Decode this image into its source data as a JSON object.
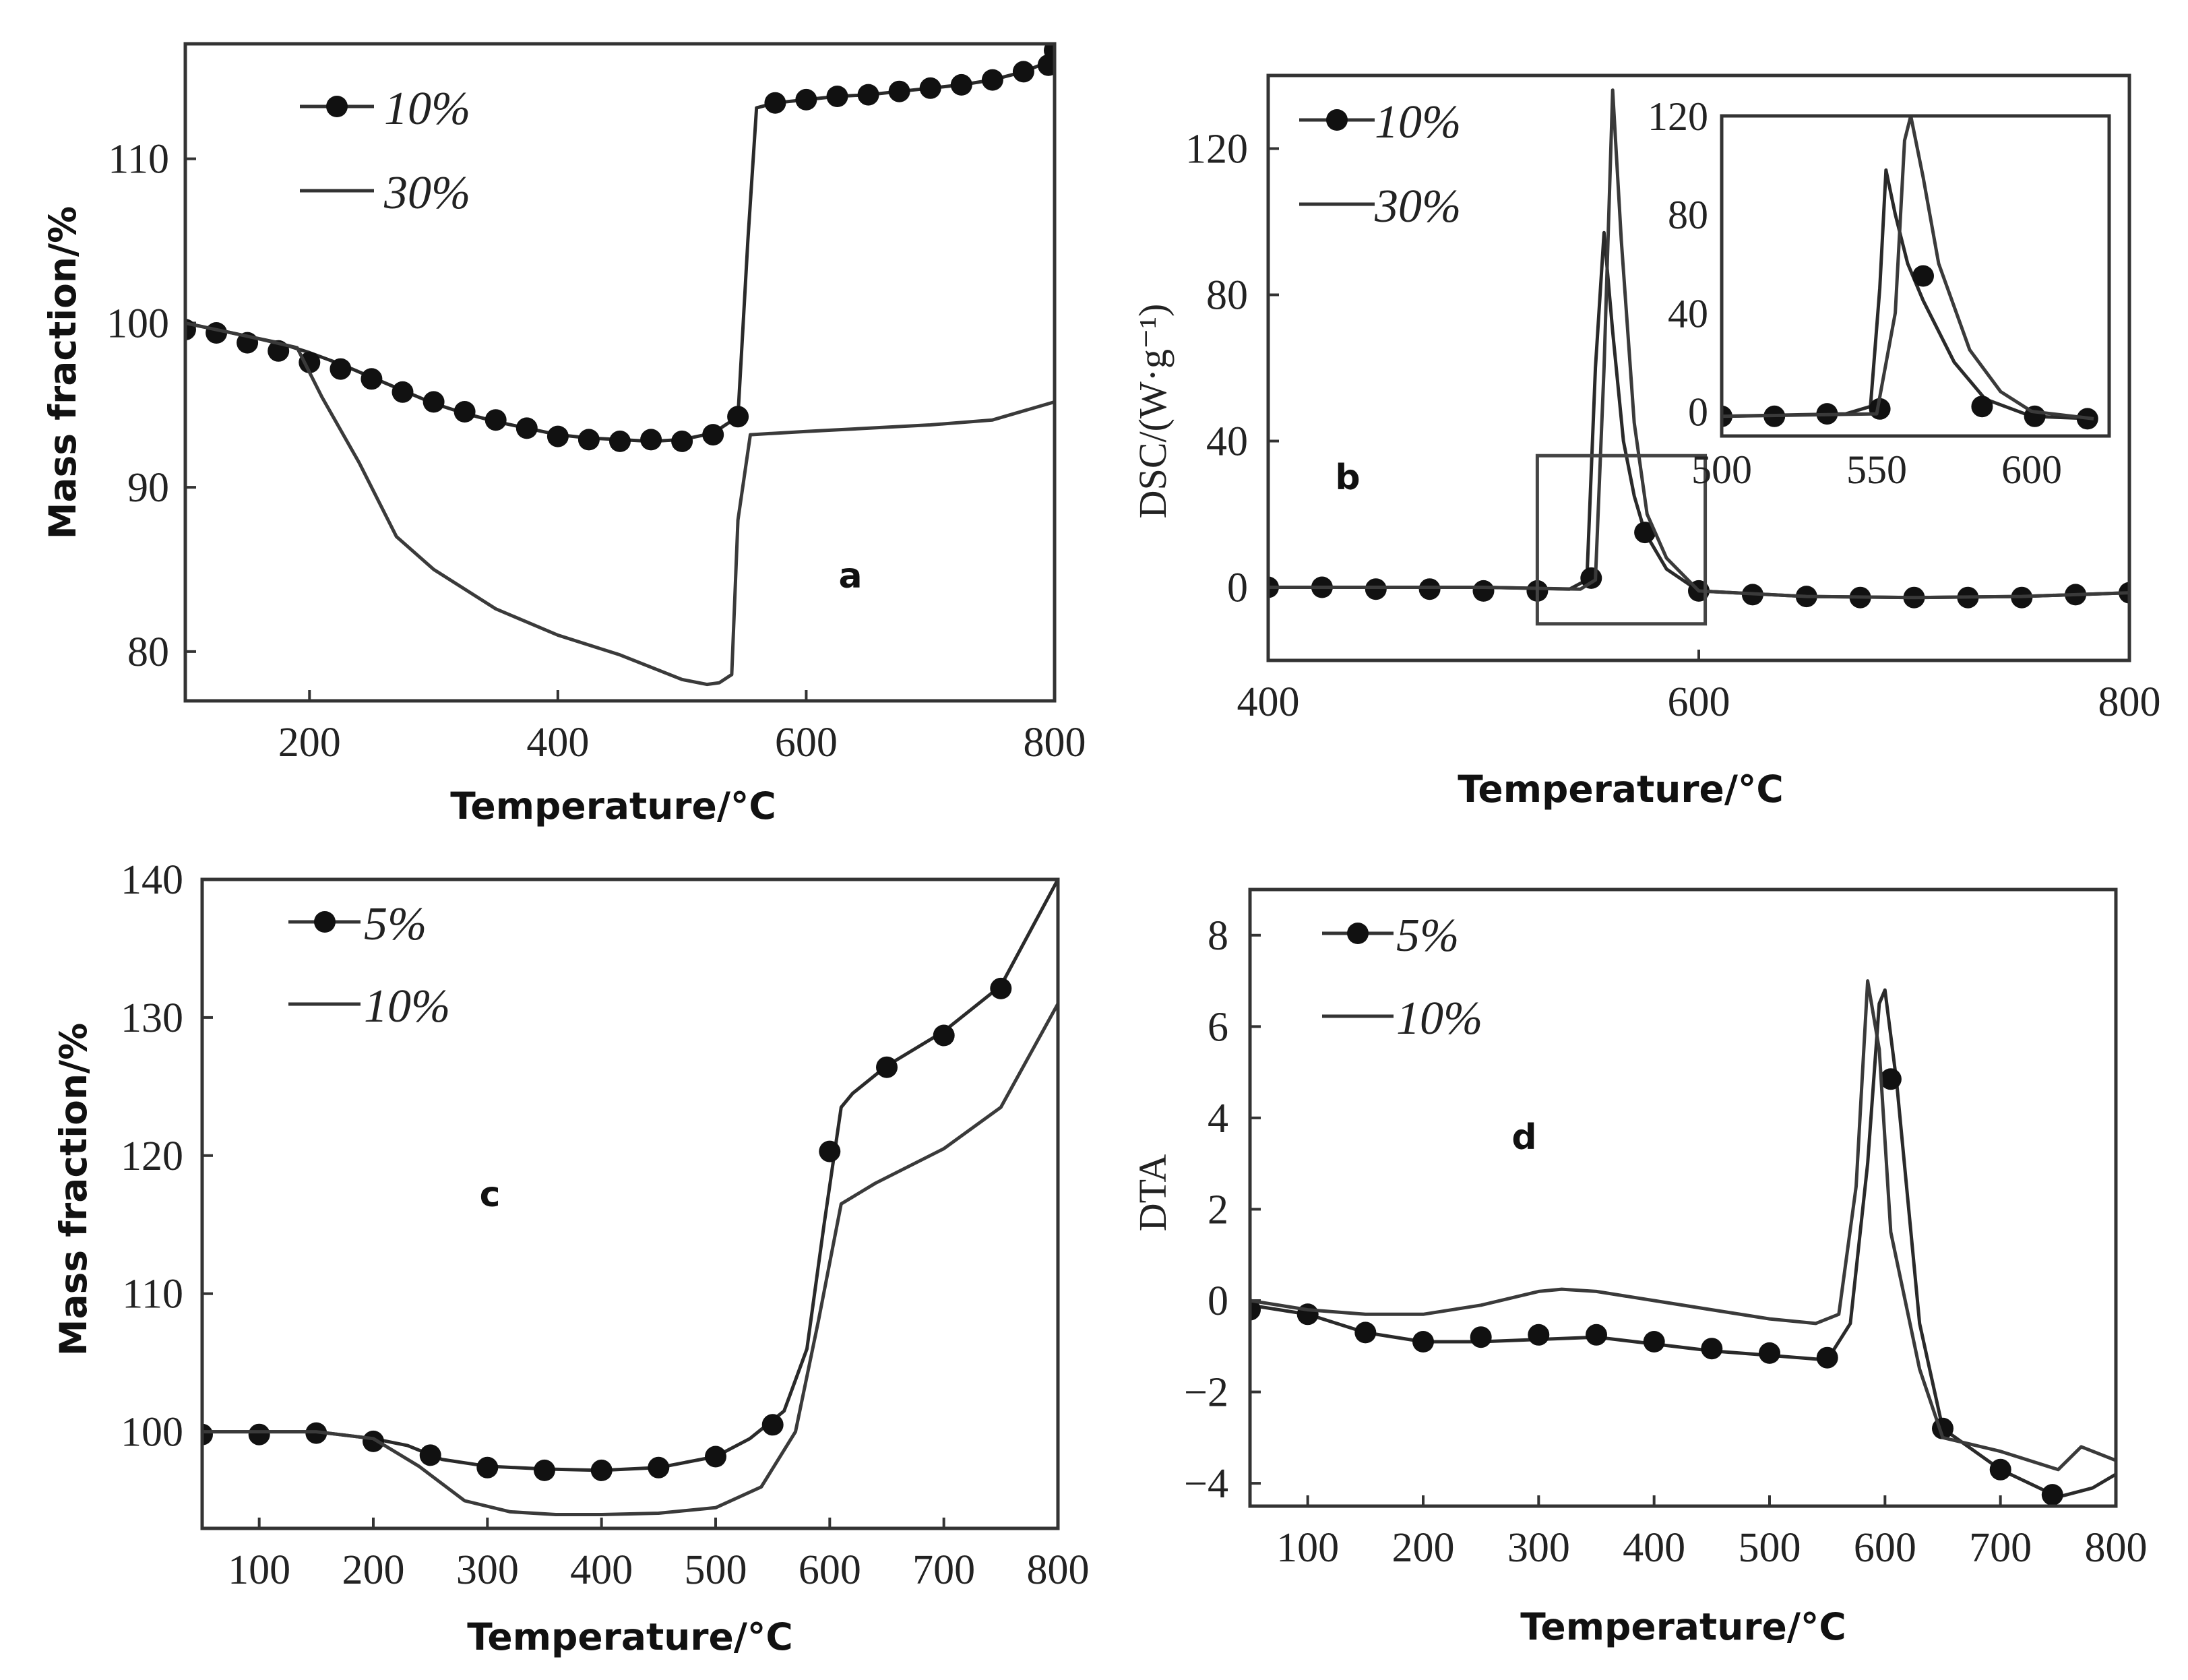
{
  "figure": {
    "panels": [
      "a",
      "b",
      "c",
      "d"
    ]
  },
  "chart_data": [
    {
      "id": "a",
      "type": "line",
      "panel_label": "a",
      "xlabel": "Temperature/°C",
      "ylabel": "Mass fraction/%",
      "xlim": [
        100,
        800
      ],
      "ylim": [
        77,
        117
      ],
      "xticks": [
        200,
        400,
        600,
        800
      ],
      "yticks": [
        80,
        90,
        100,
        110
      ],
      "legend_position": "top-left",
      "series": [
        {
          "name": "10%",
          "marker": "circle",
          "x": [
            100,
            125,
            150,
            175,
            200,
            225,
            250,
            275,
            300,
            325,
            350,
            375,
            400,
            425,
            450,
            475,
            500,
            525,
            545,
            553,
            560,
            575,
            600,
            625,
            650,
            675,
            700,
            725,
            750,
            775,
            795,
            800
          ],
          "y": [
            100,
            99.6,
            99.2,
            98.8,
            98.2,
            97.5,
            96.7,
            95.9,
            95.1,
            94.5,
            94.0,
            93.6,
            93.2,
            93.0,
            92.9,
            92.8,
            92.9,
            93.3,
            94.3,
            105,
            113.1,
            113.4,
            113.6,
            113.8,
            113.9,
            114.1,
            114.3,
            114.5,
            114.8,
            115.3,
            115.9,
            116.8
          ],
          "marker_x": [
            100,
            125,
            150,
            175,
            200,
            225,
            250,
            275,
            300,
            325,
            350,
            375,
            400,
            425,
            450,
            475,
            500,
            525,
            545,
            575,
            600,
            625,
            650,
            675,
            700,
            725,
            750,
            775,
            795,
            800
          ],
          "marker_y": [
            99.6,
            99.4,
            98.8,
            98.3,
            97.6,
            97.2,
            96.6,
            95.8,
            95.2,
            94.6,
            94.1,
            93.6,
            93.1,
            92.9,
            92.8,
            92.9,
            92.8,
            93.2,
            94.3,
            113.4,
            113.6,
            113.8,
            113.9,
            114.1,
            114.3,
            114.5,
            114.8,
            115.3,
            115.7,
            116.6
          ]
        },
        {
          "name": "30%",
          "marker": "none",
          "x": [
            100,
            150,
            190,
            210,
            240,
            270,
            300,
            350,
            400,
            450,
            500,
            520,
            530,
            540,
            545,
            555,
            600,
            650,
            700,
            750,
            800
          ],
          "y": [
            100,
            99.2,
            98.5,
            95.5,
            91.5,
            87.0,
            85.0,
            82.6,
            81.0,
            79.8,
            78.3,
            78.0,
            78.1,
            78.6,
            88,
            93.2,
            93.4,
            93.6,
            93.8,
            94.1,
            95.2
          ]
        }
      ]
    },
    {
      "id": "b",
      "type": "line",
      "panel_label": "b",
      "xlabel": "Temperature/°C",
      "ylabel": "DSC/(W·g⁻¹)",
      "xlim": [
        400,
        800
      ],
      "ylim": [
        -20,
        140
      ],
      "xticks": [
        400,
        600,
        800
      ],
      "yticks": [
        0,
        40,
        80,
        120
      ],
      "legend_position": "top-left",
      "zoom_box": {
        "x": [
          525,
          603
        ],
        "y": [
          -10,
          36
        ]
      },
      "series": [
        {
          "name": "10%",
          "marker": "circle",
          "x": [
            400,
            500,
            540,
            548,
            552,
            556,
            560,
            565,
            570,
            575,
            585,
            600,
            650,
            700,
            750,
            800
          ],
          "y": [
            0,
            0,
            -0.5,
            2,
            60,
            97,
            70,
            40,
            25,
            15,
            5,
            -1,
            -2.5,
            -2.8,
            -2.5,
            -1.5
          ],
          "marker_x": [
            400,
            425,
            450,
            475,
            500,
            525,
            550,
            575,
            600,
            625,
            650,
            675,
            700,
            725,
            750,
            775,
            800
          ],
          "marker_y": [
            0,
            0,
            -0.5,
            -0.5,
            -1,
            -1,
            2.5,
            15,
            -1,
            -2,
            -2.5,
            -2.8,
            -2.8,
            -2.8,
            -2.8,
            -2,
            -1.5
          ]
        },
        {
          "name": "30%",
          "marker": "none",
          "x": [
            400,
            500,
            545,
            552,
            556,
            560,
            564,
            570,
            576,
            585,
            600,
            650,
            700,
            750,
            800
          ],
          "y": [
            0,
            0,
            -0.5,
            2,
            60,
            136,
            95,
            45,
            20,
            8,
            -1,
            -2.5,
            -2.8,
            -2.5,
            -1.5
          ]
        }
      ],
      "inset": {
        "xlim": [
          500,
          625
        ],
        "ylim": [
          -10,
          120
        ],
        "xticks": [
          500,
          550,
          600
        ],
        "yticks": [
          0,
          40,
          80,
          120
        ],
        "series": [
          {
            "name": "10%",
            "x": [
              500,
              540,
              548,
              551,
              553,
              556,
              560,
              565,
              575,
              585,
              600,
              620
            ],
            "y": [
              -2,
              -1,
              2,
              50,
              98,
              80,
              60,
              45,
              20,
              5,
              -2,
              -3
            ],
            "marker_x": [
              500,
              517,
              534,
              551,
              565,
              584,
              601,
              618
            ],
            "marker_y": [
              -2,
              -2,
              -1,
              1,
              55,
              2,
              -2,
              -3
            ]
          },
          {
            "name": "30%",
            "x": [
              500,
              550,
              556,
              559,
              561,
              565,
              570,
              580,
              590,
              600,
              620
            ],
            "y": [
              -2,
              -1,
              40,
              110,
              120,
              95,
              60,
              25,
              8,
              0,
              -3
            ]
          }
        ]
      }
    },
    {
      "id": "c",
      "type": "line",
      "panel_label": "c",
      "xlabel": "Temperature/°C",
      "ylabel": "Mass fraction/%",
      "xlim": [
        50,
        800
      ],
      "ylim": [
        93,
        140
      ],
      "xticks": [
        100,
        200,
        300,
        400,
        500,
        600,
        700,
        800
      ],
      "yticks": [
        100,
        110,
        120,
        130,
        140
      ],
      "legend_position": "top-left",
      "series": [
        {
          "name": "5%",
          "marker": "circle",
          "x": [
            50,
            100,
            150,
            200,
            230,
            260,
            300,
            350,
            400,
            450,
            500,
            530,
            560,
            580,
            595,
            610,
            620,
            650,
            700,
            750,
            800
          ],
          "y": [
            100,
            100,
            100,
            99.5,
            99,
            98,
            97.5,
            97.3,
            97.2,
            97.4,
            98.2,
            99.5,
            101.5,
            106,
            115,
            123.5,
            124.5,
            126.5,
            129,
            132.3,
            140
          ],
          "marker_x": [
            50,
            100,
            150,
            200,
            250,
            300,
            350,
            400,
            450,
            500,
            550,
            600,
            650,
            700,
            750
          ],
          "marker_y": [
            99.8,
            99.8,
            99.9,
            99.3,
            98.3,
            97.4,
            97.2,
            97.2,
            97.4,
            98.2,
            100.5,
            120.3,
            126.4,
            128.7,
            132.1
          ]
        },
        {
          "name": "10%",
          "marker": "none",
          "x": [
            50,
            150,
            200,
            240,
            280,
            320,
            360,
            400,
            450,
            500,
            540,
            570,
            590,
            610,
            640,
            700,
            750,
            800
          ],
          "y": [
            100,
            100,
            99.5,
            97.5,
            95,
            94.2,
            94.0,
            94.0,
            94.1,
            94.5,
            96,
            100,
            108,
            116.5,
            118,
            120.5,
            123.5,
            131
          ]
        }
      ]
    },
    {
      "id": "d",
      "type": "line",
      "panel_label": "d",
      "xlabel": "Temperature/°C",
      "ylabel": "DTA",
      "xlim": [
        50,
        800
      ],
      "ylim": [
        -4.5,
        9
      ],
      "xticks": [
        100,
        200,
        300,
        400,
        500,
        600,
        700,
        800
      ],
      "yticks": [
        -4,
        -2,
        0,
        2,
        4,
        6,
        8
      ],
      "legend_position": "top-left",
      "series": [
        {
          "name": "5%",
          "marker": "circle",
          "x": [
            50,
            100,
            150,
            200,
            250,
            300,
            350,
            400,
            450,
            500,
            550,
            570,
            585,
            595,
            600,
            610,
            630,
            650,
            700,
            750,
            780,
            800
          ],
          "y": [
            -0.1,
            -0.3,
            -0.7,
            -0.9,
            -0.9,
            -0.85,
            -0.8,
            -0.95,
            -1.1,
            -1.2,
            -1.3,
            -0.5,
            3,
            6.5,
            6.8,
            4.8,
            -0.5,
            -2.8,
            -3.7,
            -4.3,
            -4.1,
            -3.8
          ],
          "marker_x": [
            50,
            100,
            150,
            200,
            250,
            300,
            350,
            400,
            450,
            500,
            550,
            605,
            650,
            700,
            745
          ],
          "marker_y": [
            -0.2,
            -0.3,
            -0.7,
            -0.9,
            -0.8,
            -0.75,
            -0.75,
            -0.9,
            -1.05,
            -1.15,
            -1.25,
            4.85,
            -2.8,
            -3.7,
            -4.25
          ]
        },
        {
          "name": "10%",
          "marker": "none",
          "x": [
            50,
            100,
            150,
            200,
            250,
            300,
            320,
            350,
            400,
            450,
            500,
            540,
            560,
            575,
            585,
            595,
            605,
            630,
            650,
            700,
            750,
            770,
            800
          ],
          "y": [
            0.0,
            -0.2,
            -0.3,
            -0.3,
            -0.1,
            0.2,
            0.25,
            0.2,
            0.0,
            -0.2,
            -0.4,
            -0.5,
            -0.3,
            2.5,
            7.0,
            5.5,
            1.5,
            -1.5,
            -3.0,
            -3.3,
            -3.7,
            -3.2,
            -3.5
          ]
        }
      ]
    }
  ]
}
